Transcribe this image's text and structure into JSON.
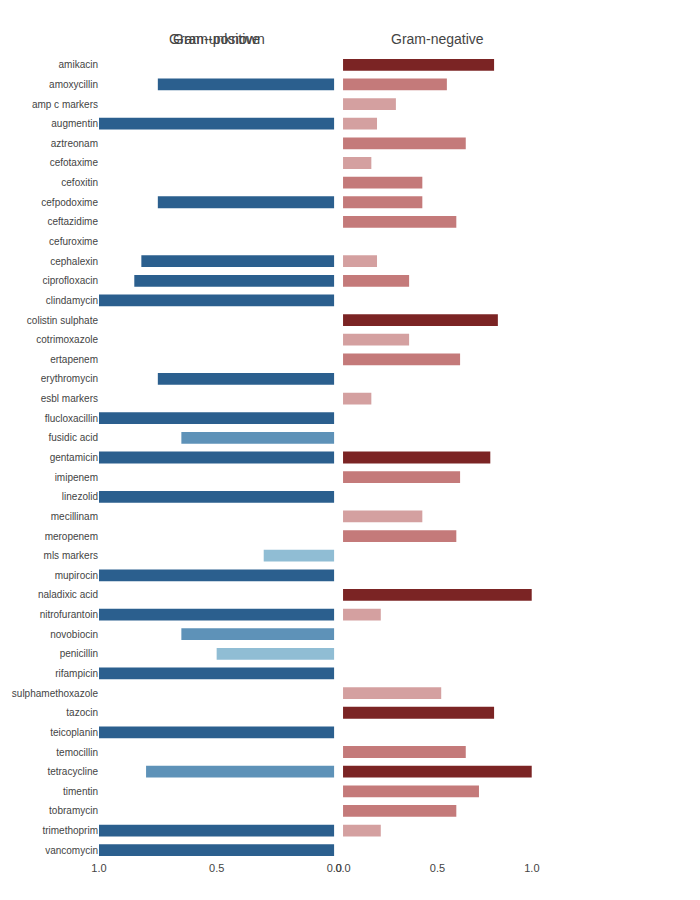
{
  "chart_data": [
    {
      "type": "bar",
      "orientation": "horizontal",
      "title": "Gram-positive",
      "categories": [
        "amikacin",
        "amoxycillin",
        "amp c markers",
        "augmentin",
        "aztreonam",
        "cefotaxime",
        "cefoxitin",
        "cefpodoxime",
        "ceftazidime",
        "cefuroxime",
        "cephalexin",
        "ciprofloxacin",
        "clindamycin",
        "colistin sulphate",
        "cotrimoxazole",
        "ertapenem",
        "erythromycin",
        "esbl markers",
        "flucloxacillin",
        "fusidic acid",
        "gentamicin",
        "imipenem",
        "linezolid",
        "mecillinam",
        "meropenem",
        "mls markers",
        "mupirocin",
        "naladixic acid",
        "nitrofurantoin",
        "novobiocin",
        "penicillin",
        "rifampicin",
        "sulphamethoxazole",
        "tazocin",
        "teicoplanin",
        "temocillin",
        "tetracycline",
        "timentin",
        "tobramycin",
        "trimethoprim",
        "vancomycin"
      ],
      "values": [
        0.0,
        0.75,
        0.0,
        1.0,
        0.0,
        0.0,
        0.0,
        0.75,
        0.0,
        0.0,
        0.82,
        0.85,
        1.0,
        0.0,
        0.0,
        0.0,
        0.75,
        0.0,
        1.0,
        0.65,
        1.0,
        0.0,
        1.0,
        0.0,
        0.0,
        0.3,
        1.0,
        0.0,
        1.0,
        0.65,
        0.5,
        1.0,
        0.0,
        0.0,
        1.0,
        0.0,
        0.8,
        0.0,
        0.0,
        1.0,
        1.0
      ],
      "colors": [
        "#ffffff",
        "#2b5f8e",
        "#ffffff",
        "#2b5f8e",
        "#ffffff",
        "#ffffff",
        "#ffffff",
        "#2b5f8e",
        "#ffffff",
        "#ffffff",
        "#2b5f8e",
        "#2b5f8e",
        "#2b5f8e",
        "#ffffff",
        "#ffffff",
        "#ffffff",
        "#2b5f8e",
        "#ffffff",
        "#2b5f8e",
        "#5e92b8",
        "#2b5f8e",
        "#ffffff",
        "#2b5f8e",
        "#ffffff",
        "#ffffff",
        "#90bdd4",
        "#2b5f8e",
        "#ffffff",
        "#2b5f8e",
        "#5e92b8",
        "#90bdd4",
        "#2b5f8e",
        "#ffffff",
        "#ffffff",
        "#2b5f8e",
        "#ffffff",
        "#5e92b8",
        "#ffffff",
        "#ffffff",
        "#2b5f8e",
        "#2b5f8e"
      ],
      "xlim": [
        1.0,
        0.0
      ],
      "xticks": [
        {
          "value": 0.0,
          "label": "0.0"
        },
        0.5,
        {
          "value": 1.0,
          "label": "1.0"
        }
      ],
      "grid": false
    },
    {
      "type": "bar",
      "orientation": "horizontal",
      "title": "Gram-negative",
      "categories": [
        "amikacin",
        "amoxycillin",
        "amp c markers",
        "augmentin",
        "aztreonam",
        "cefotaxime",
        "cefoxitin",
        "cefpodoxime",
        "ceftazidime",
        "cefuroxime",
        "cephalexin",
        "ciprofloxacin",
        "clindamycin",
        "colistin sulphate",
        "cotrimoxazole",
        "ertapenem",
        "erythromycin",
        "esbl markers",
        "flucloxacillin",
        "fusidic acid",
        "gentamicin",
        "imipenem",
        "linezolid",
        "mecillinam",
        "meropenem",
        "mls markers",
        "mupirocin",
        "naladixic acid",
        "nitrofurantoin",
        "novobiocin",
        "penicillin",
        "rifampicin",
        "sulphamethoxazole",
        "tazocin",
        "teicoplanin",
        "temocillin",
        "tetracycline",
        "timentin",
        "tobramycin",
        "trimethoprim",
        "vancomycin"
      ],
      "values": [
        0.8,
        0.55,
        0.28,
        0.18,
        0.65,
        0.15,
        0.42,
        0.42,
        0.6,
        0.0,
        0.18,
        0.35,
        0.0,
        0.82,
        0.35,
        0.62,
        0.0,
        0.15,
        0.0,
        0.0,
        0.78,
        0.62,
        0.0,
        0.42,
        0.6,
        0.0,
        0.0,
        1.0,
        0.2,
        0.0,
        0.0,
        0.0,
        0.52,
        0.8,
        0.0,
        0.65,
        1.0,
        0.72,
        0.6,
        0.2,
        0.0
      ],
      "colors": [
        "#7b2424",
        "#c47a7a",
        "#d4a0a0",
        "#d4a0a0",
        "#c47a7a",
        "#d4a0a0",
        "#c47a7a",
        "#c47a7a",
        "#c47a7a",
        "#ffffff",
        "#d4a0a0",
        "#c47a7a",
        "#ffffff",
        "#7b2424",
        "#d4a0a0",
        "#c47a7a",
        "#ffffff",
        "#d4a0a0",
        "#ffffff",
        "#ffffff",
        "#7b2424",
        "#c47a7a",
        "#ffffff",
        "#d4a0a0",
        "#c47a7a",
        "#ffffff",
        "#ffffff",
        "#7b2424",
        "#d4a0a0",
        "#ffffff",
        "#ffffff",
        "#ffffff",
        "#d4a0a0",
        "#7b2424",
        "#ffffff",
        "#c47a7a",
        "#7b2424",
        "#c47a7a",
        "#c47a7a",
        "#d4a0a0",
        "#ffffff"
      ],
      "xlim": [
        0.0,
        1.0
      ],
      "xticks": [
        {
          "value": 0.0,
          "label": "0.0"
        },
        0.5,
        {
          "value": 1.0,
          "label": "1.0"
        }
      ],
      "tick_labels": "x",
      "grid": false
    },
    {
      "type": "bar",
      "orientation": "horizontal",
      "title": "Gram-unknown",
      "xlim": [
        0.0,
        1.0
      ],
      "xticks": [
        {
          "value": 0.0,
          "label": "0.0"
        },
        0.5,
        {
          "value": 1.0,
          "label": "1.0"
        }
      ],
      "tick_labels": "x",
      "grid": false
    }
  ]
}
